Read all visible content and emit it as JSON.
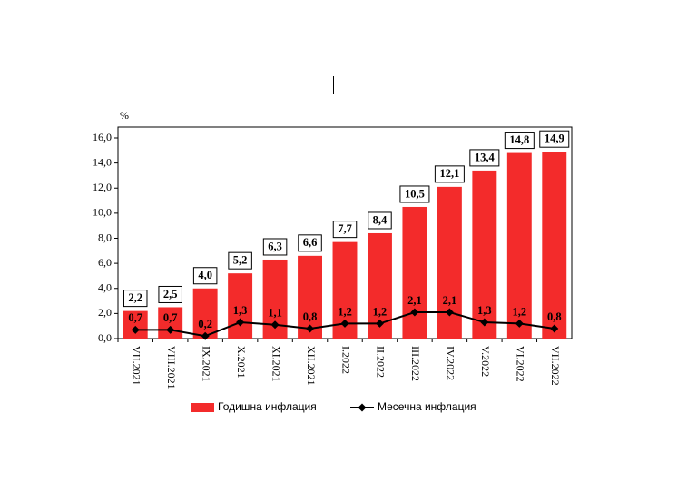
{
  "chart_data": {
    "type": "bar",
    "y_label": "%",
    "categories": [
      "VII.2021",
      "VIII.2021",
      "IX.2021",
      "X.2021",
      "XI.2021",
      "XII.2021",
      "I.2022",
      "II.2022",
      "III.2022",
      "IV.2022",
      "V.2022",
      "VI.2022",
      "VII.2022"
    ],
    "series": [
      {
        "name": "Годишна инфлация",
        "type": "bar",
        "color": "#f32b2b",
        "values": [
          2.2,
          2.5,
          4.0,
          5.2,
          6.3,
          6.6,
          7.7,
          8.4,
          10.5,
          12.1,
          13.4,
          14.8,
          14.9
        ],
        "value_labels": [
          "2,2",
          "2,5",
          "4,0",
          "5,2",
          "6,3",
          "6,6",
          "7,7",
          "8,4",
          "10,5",
          "12,1",
          "13,4",
          "14,8",
          "14,9"
        ]
      },
      {
        "name": "Месечна инфлация",
        "type": "line",
        "color": "#000000",
        "values": [
          0.7,
          0.7,
          0.2,
          1.3,
          1.1,
          0.8,
          1.2,
          1.2,
          2.1,
          2.1,
          1.3,
          1.2,
          0.8
        ],
        "value_labels": [
          "0,7",
          "0,7",
          "0,2",
          "1,3",
          "1,1",
          "0,8",
          "1,2",
          "1,2",
          "2,1",
          "2,1",
          "1,3",
          "1,2",
          "0,8"
        ]
      }
    ],
    "ylim": [
      0,
      16
    ],
    "yticks": [
      {
        "value": 0,
        "label": "0,0"
      },
      {
        "value": 2,
        "label": "2,0"
      },
      {
        "value": 4,
        "label": "4,0"
      },
      {
        "value": 6,
        "label": "6,0"
      },
      {
        "value": 8,
        "label": "8,0"
      },
      {
        "value": 10,
        "label": "10,0"
      },
      {
        "value": 12,
        "label": "12,0"
      },
      {
        "value": 14,
        "label": "14,0"
      },
      {
        "value": 16,
        "label": "16,0"
      }
    ],
    "grid": false,
    "legend": "bottom"
  }
}
